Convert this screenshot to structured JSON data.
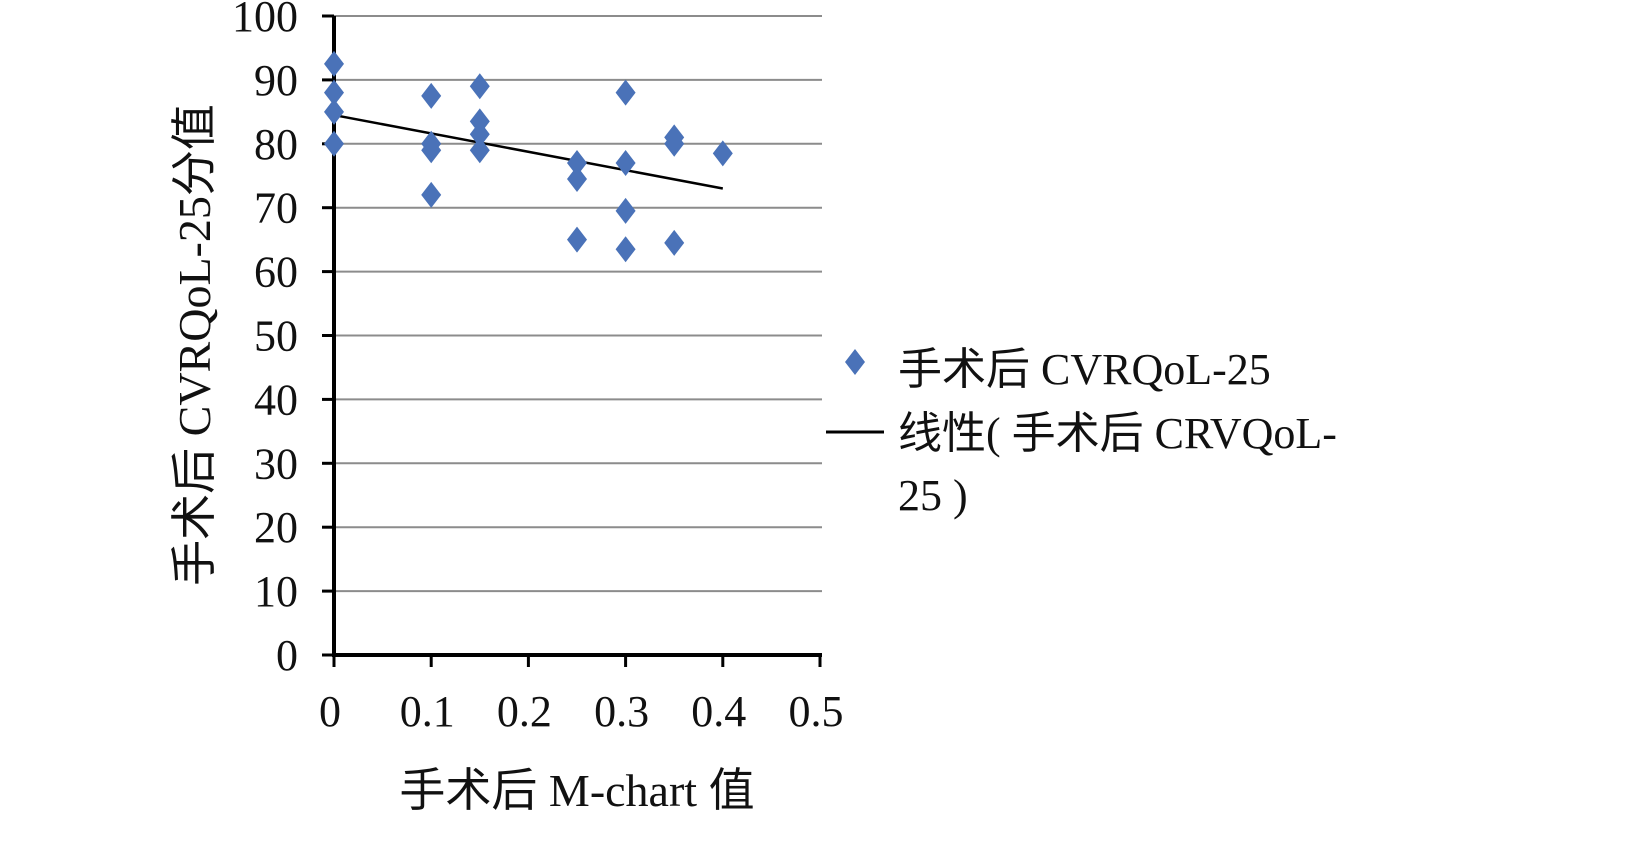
{
  "chart_data": {
    "type": "scatter",
    "xlabel": "手术后 M-chart 值",
    "ylabel": "手术后 CVRQoL-25分值",
    "xlim": [
      0,
      0.5
    ],
    "ylim": [
      0,
      100
    ],
    "x_ticks": [
      "0",
      "0.1",
      "0.2",
      "0.3",
      "0.4",
      "0.5"
    ],
    "y_ticks": [
      "0",
      "10",
      "20",
      "30",
      "40",
      "50",
      "60",
      "70",
      "80",
      "90",
      "100"
    ],
    "grid": "horizontal",
    "legend_position": "right",
    "colors": {
      "points": "#4a72b8",
      "trendline": "#000000",
      "grid": "#8c8c8c",
      "axis": "#000000"
    },
    "series": [
      {
        "name": "手术后 CVRQoL-25",
        "marker": "diamond",
        "points": [
          [
            0,
            92.5
          ],
          [
            0,
            88
          ],
          [
            0,
            85
          ],
          [
            0,
            80
          ],
          [
            0.1,
            87.5
          ],
          [
            0.1,
            80
          ],
          [
            0.1,
            79
          ],
          [
            0.1,
            72
          ],
          [
            0.15,
            89
          ],
          [
            0.15,
            83.5
          ],
          [
            0.15,
            81.5
          ],
          [
            0.15,
            79
          ],
          [
            0.25,
            77
          ],
          [
            0.25,
            74.5
          ],
          [
            0.25,
            65
          ],
          [
            0.3,
            88
          ],
          [
            0.3,
            77
          ],
          [
            0.3,
            69.5
          ],
          [
            0.3,
            63.5
          ],
          [
            0.35,
            81
          ],
          [
            0.35,
            80
          ],
          [
            0.35,
            64.5
          ],
          [
            0.4,
            78.5
          ]
        ]
      }
    ],
    "trendline": {
      "name_lines": [
        "线性( 手术后 CRVQoL-",
        "25 )"
      ],
      "from": [
        0,
        84.5
      ],
      "to": [
        0.4,
        73
      ]
    }
  }
}
